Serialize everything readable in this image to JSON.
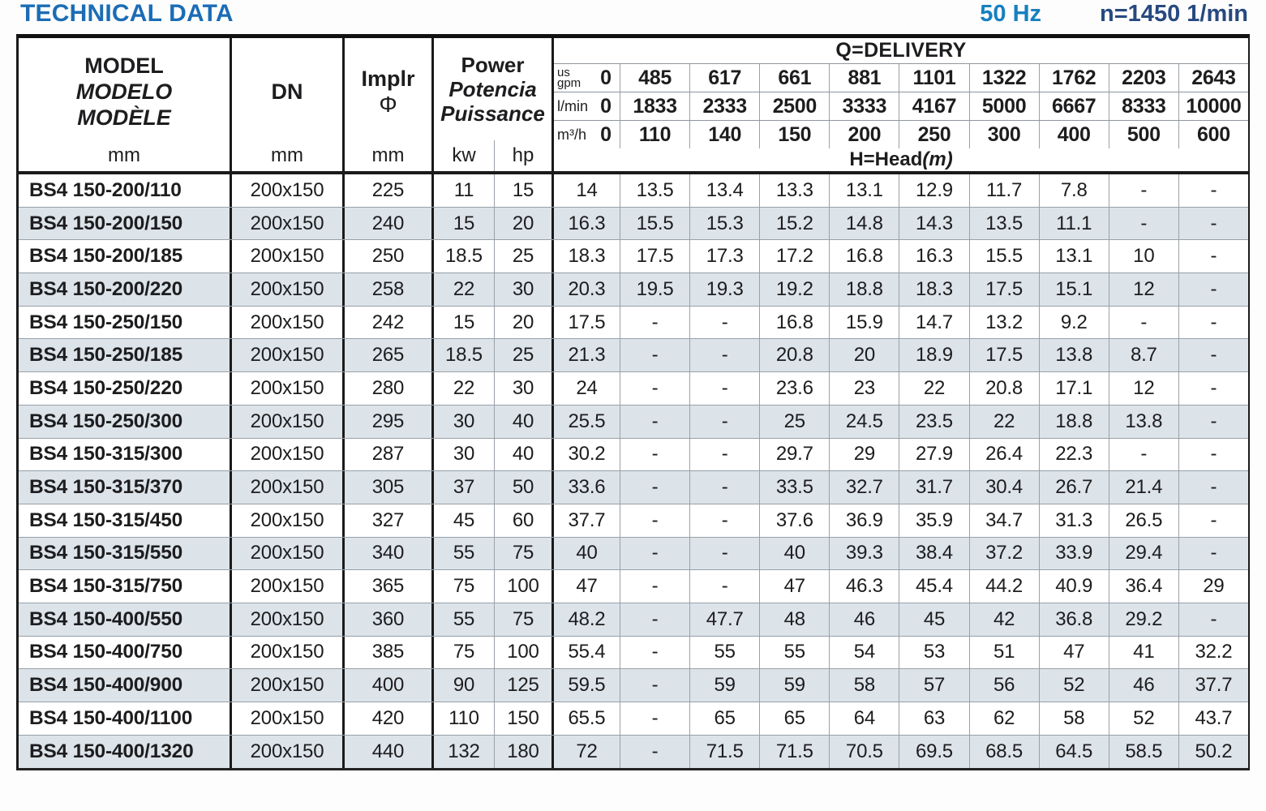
{
  "header": {
    "title": "TECHNICAL DATA",
    "frequency": "50 Hz",
    "speed": "n=1450 1/min"
  },
  "colors": {
    "title_blue": "#1b6cb5",
    "frequency_blue": "#1680bf",
    "speed_navy": "#27497f",
    "shaded_row": "#dce3e9",
    "ink": "#1d1d1f"
  },
  "table": {
    "model_col": {
      "labels": [
        "MODEL",
        "MODELO",
        "MODÈLE"
      ],
      "unit": "mm"
    },
    "dn_col": {
      "label": "DN",
      "unit": "mm"
    },
    "impeller_col": {
      "label": "Implr",
      "symbol": "Φ",
      "unit": "mm"
    },
    "power_col": {
      "labels": [
        "Power",
        "Potencia",
        "Puissance"
      ],
      "units": [
        "kw",
        "hp"
      ]
    },
    "delivery": {
      "title": "Q=DELIVERY",
      "unit_rows": [
        {
          "label": [
            "us",
            "gpm"
          ],
          "zero": "0",
          "values": [
            "485",
            "617",
            "661",
            "881",
            "1101",
            "1322",
            "1762",
            "2203",
            "2643"
          ]
        },
        {
          "label": [
            "l/min"
          ],
          "zero": "0",
          "values": [
            "1833",
            "2333",
            "2500",
            "3333",
            "4167",
            "5000",
            "6667",
            "8333",
            "10000"
          ]
        },
        {
          "label": [
            "m³/h"
          ],
          "zero": "0",
          "values": [
            "110",
            "140",
            "150",
            "200",
            "250",
            "300",
            "400",
            "500",
            "600"
          ]
        }
      ],
      "head_label": "H=Head",
      "head_unit": "(m)"
    },
    "rows": [
      {
        "model": "BS4 150-200/110",
        "dn": "200x150",
        "impeller": "225",
        "kw": "11",
        "hp": "15",
        "head": [
          "14",
          "13.5",
          "13.4",
          "13.3",
          "13.1",
          "12.9",
          "11.7",
          "7.8",
          "-",
          "-"
        ]
      },
      {
        "model": "BS4 150-200/150",
        "dn": "200x150",
        "impeller": "240",
        "kw": "15",
        "hp": "20",
        "head": [
          "16.3",
          "15.5",
          "15.3",
          "15.2",
          "14.8",
          "14.3",
          "13.5",
          "11.1",
          "-",
          "-"
        ]
      },
      {
        "model": "BS4 150-200/185",
        "dn": "200x150",
        "impeller": "250",
        "kw": "18.5",
        "hp": "25",
        "head": [
          "18.3",
          "17.5",
          "17.3",
          "17.2",
          "16.8",
          "16.3",
          "15.5",
          "13.1",
          "10",
          "-"
        ]
      },
      {
        "model": "BS4 150-200/220",
        "dn": "200x150",
        "impeller": "258",
        "kw": "22",
        "hp": "30",
        "head": [
          "20.3",
          "19.5",
          "19.3",
          "19.2",
          "18.8",
          "18.3",
          "17.5",
          "15.1",
          "12",
          "-"
        ]
      },
      {
        "model": "BS4 150-250/150",
        "dn": "200x150",
        "impeller": "242",
        "kw": "15",
        "hp": "20",
        "head": [
          "17.5",
          "-",
          "-",
          "16.8",
          "15.9",
          "14.7",
          "13.2",
          "9.2",
          "-",
          "-"
        ]
      },
      {
        "model": "BS4 150-250/185",
        "dn": "200x150",
        "impeller": "265",
        "kw": "18.5",
        "hp": "25",
        "head": [
          "21.3",
          "-",
          "-",
          "20.8",
          "20",
          "18.9",
          "17.5",
          "13.8",
          "8.7",
          "-"
        ]
      },
      {
        "model": "BS4 150-250/220",
        "dn": "200x150",
        "impeller": "280",
        "kw": "22",
        "hp": "30",
        "head": [
          "24",
          "-",
          "-",
          "23.6",
          "23",
          "22",
          "20.8",
          "17.1",
          "12",
          "-"
        ]
      },
      {
        "model": "BS4 150-250/300",
        "dn": "200x150",
        "impeller": "295",
        "kw": "30",
        "hp": "40",
        "head": [
          "25.5",
          "-",
          "-",
          "25",
          "24.5",
          "23.5",
          "22",
          "18.8",
          "13.8",
          "-"
        ]
      },
      {
        "model": "BS4 150-315/300",
        "dn": "200x150",
        "impeller": "287",
        "kw": "30",
        "hp": "40",
        "head": [
          "30.2",
          "-",
          "-",
          "29.7",
          "29",
          "27.9",
          "26.4",
          "22.3",
          "-",
          "-"
        ]
      },
      {
        "model": "BS4 150-315/370",
        "dn": "200x150",
        "impeller": "305",
        "kw": "37",
        "hp": "50",
        "head": [
          "33.6",
          "-",
          "-",
          "33.5",
          "32.7",
          "31.7",
          "30.4",
          "26.7",
          "21.4",
          "-"
        ]
      },
      {
        "model": "BS4 150-315/450",
        "dn": "200x150",
        "impeller": "327",
        "kw": "45",
        "hp": "60",
        "head": [
          "37.7",
          "-",
          "-",
          "37.6",
          "36.9",
          "35.9",
          "34.7",
          "31.3",
          "26.5",
          "-"
        ]
      },
      {
        "model": "BS4 150-315/550",
        "dn": "200x150",
        "impeller": "340",
        "kw": "55",
        "hp": "75",
        "head": [
          "40",
          "-",
          "-",
          "40",
          "39.3",
          "38.4",
          "37.2",
          "33.9",
          "29.4",
          "-"
        ]
      },
      {
        "model": "BS4 150-315/750",
        "dn": "200x150",
        "impeller": "365",
        "kw": "75",
        "hp": "100",
        "head": [
          "47",
          "-",
          "-",
          "47",
          "46.3",
          "45.4",
          "44.2",
          "40.9",
          "36.4",
          "29"
        ]
      },
      {
        "model": "BS4 150-400/550",
        "dn": "200x150",
        "impeller": "360",
        "kw": "55",
        "hp": "75",
        "head": [
          "48.2",
          "-",
          "47.7",
          "48",
          "46",
          "45",
          "42",
          "36.8",
          "29.2",
          "-"
        ]
      },
      {
        "model": "BS4 150-400/750",
        "dn": "200x150",
        "impeller": "385",
        "kw": "75",
        "hp": "100",
        "head": [
          "55.4",
          "-",
          "55",
          "55",
          "54",
          "53",
          "51",
          "47",
          "41",
          "32.2"
        ]
      },
      {
        "model": "BS4 150-400/900",
        "dn": "200x150",
        "impeller": "400",
        "kw": "90",
        "hp": "125",
        "head": [
          "59.5",
          "-",
          "59",
          "59",
          "58",
          "57",
          "56",
          "52",
          "46",
          "37.7"
        ]
      },
      {
        "model": "BS4 150-400/1100",
        "dn": "200x150",
        "impeller": "420",
        "kw": "110",
        "hp": "150",
        "head": [
          "65.5",
          "-",
          "65",
          "65",
          "64",
          "63",
          "62",
          "58",
          "52",
          "43.7"
        ]
      },
      {
        "model": "BS4 150-400/1320",
        "dn": "200x150",
        "impeller": "440",
        "kw": "132",
        "hp": "180",
        "head": [
          "72",
          "-",
          "71.5",
          "71.5",
          "70.5",
          "69.5",
          "68.5",
          "64.5",
          "58.5",
          "50.2"
        ]
      }
    ]
  }
}
